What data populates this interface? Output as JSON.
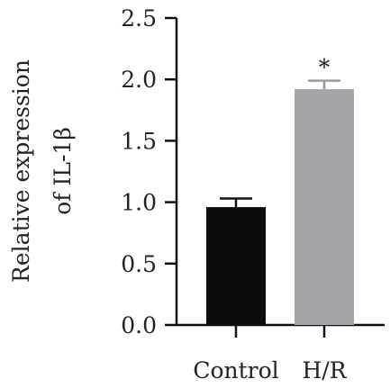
{
  "chart_data": {
    "type": "bar",
    "title": "",
    "xlabel": "",
    "ylabel": "Relative expression",
    "ylabel_line2": "of IL-1β",
    "categories": [
      "Control",
      "H/R"
    ],
    "values": [
      0.96,
      1.92
    ],
    "errors": [
      0.07,
      0.07
    ],
    "bar_colors": [
      "#0d0d0d",
      "#a3a4a7"
    ],
    "annotations": [
      "",
      "*"
    ],
    "ylim": [
      0,
      2.5
    ],
    "yticks": [
      0.0,
      0.5,
      1.0,
      1.5,
      2.0,
      2.5
    ],
    "ytick_labels": [
      "0.0",
      "0.5",
      "1.0",
      "1.5",
      "2.0",
      "2.5"
    ],
    "grid": false,
    "legend": "none"
  }
}
